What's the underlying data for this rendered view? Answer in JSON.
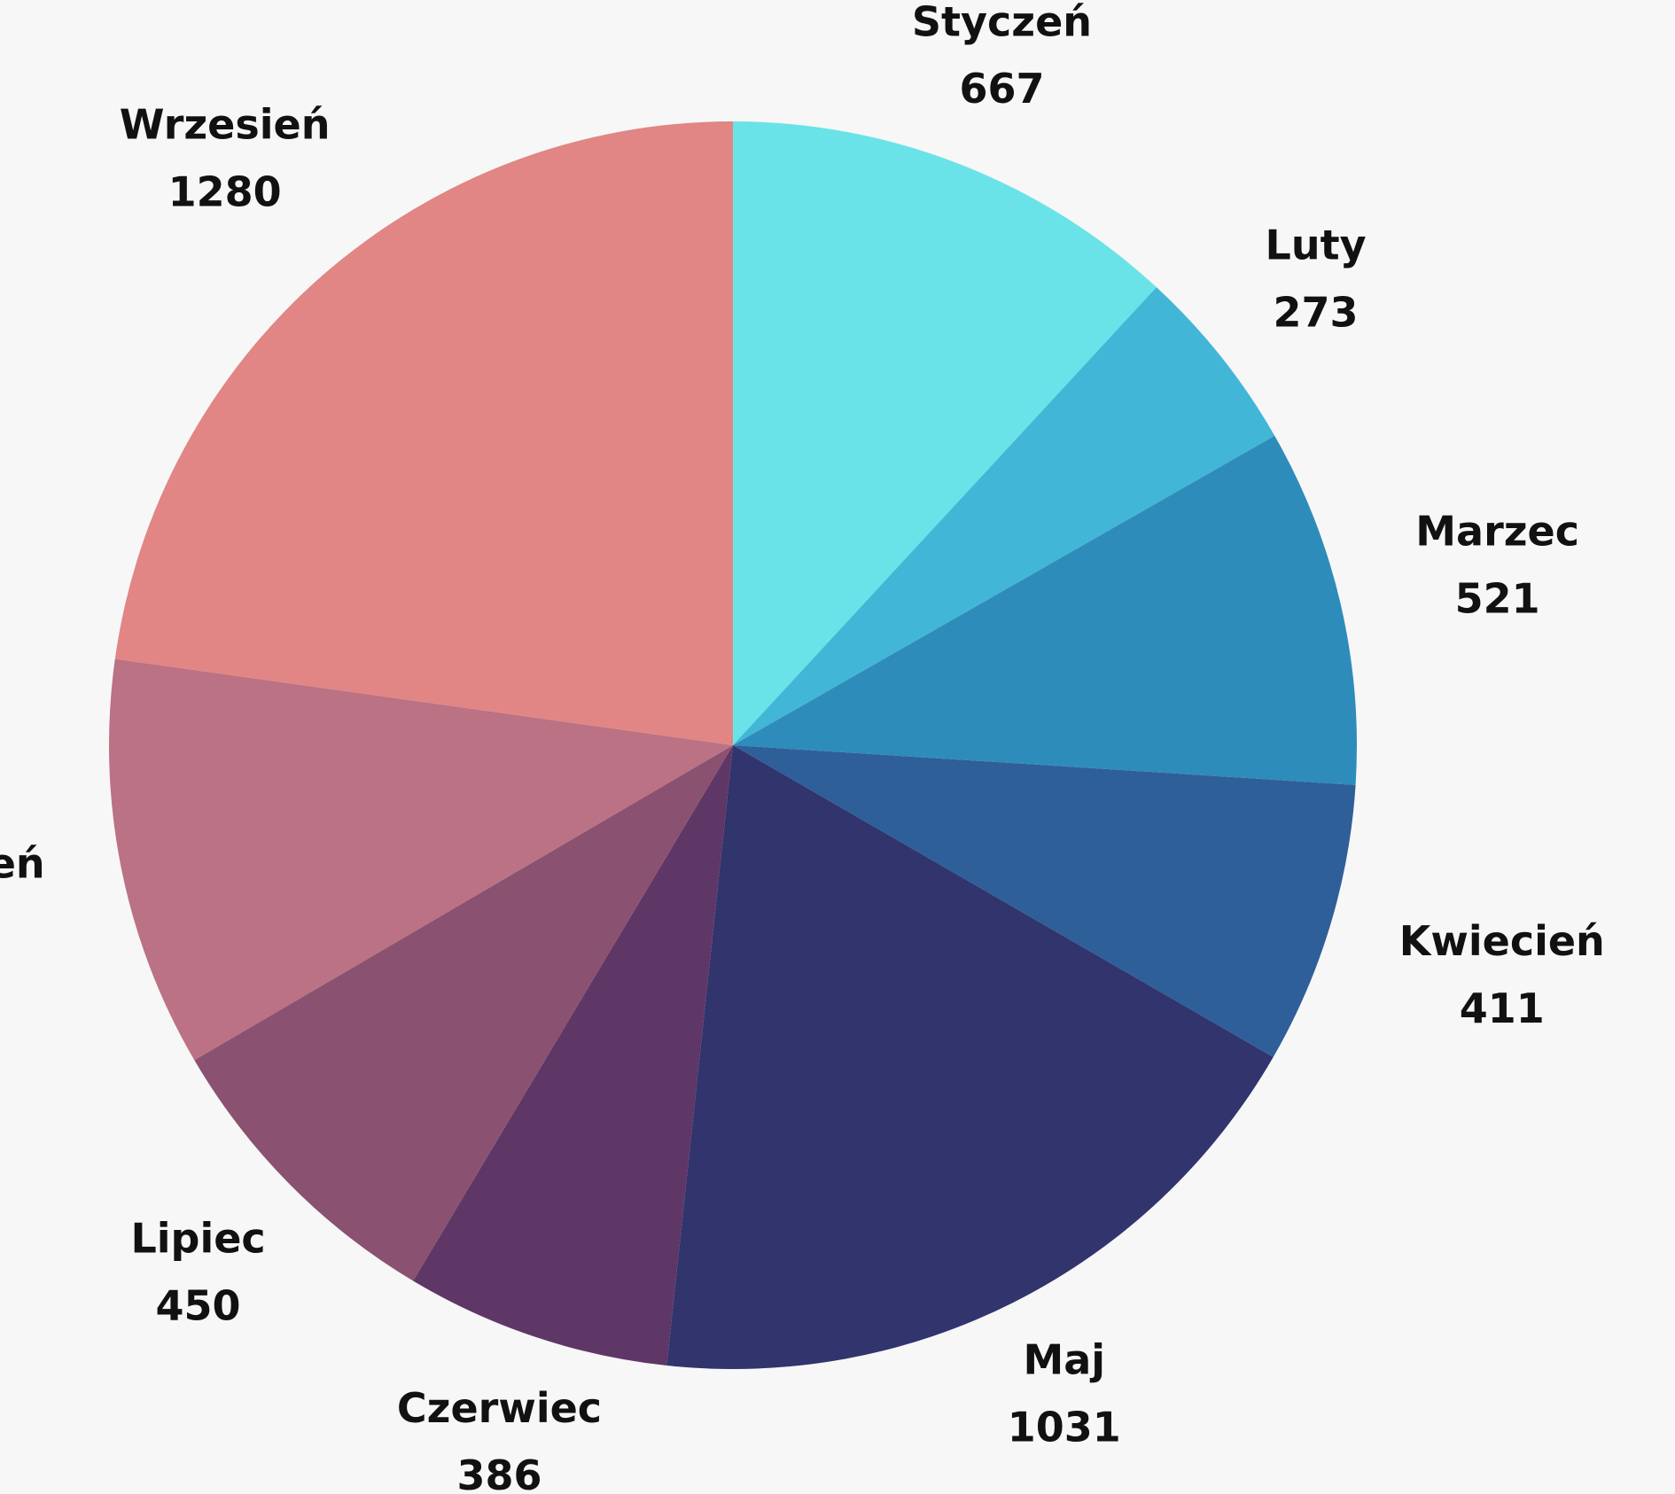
{
  "chart_data": {
    "type": "pie",
    "categories": [
      "Styczeń",
      "Luty",
      "Marzec",
      "Kwiecień",
      "Maj",
      "Czerwiec",
      "Lipiec",
      "Sierpień",
      "Wrzesień"
    ],
    "values": [
      667,
      273,
      521,
      411,
      1031,
      386,
      450,
      597,
      1280
    ],
    "colors": [
      "#6ae3e8",
      "#42b6d6",
      "#2e8cbb",
      "#2e5f98",
      "#31346d",
      "#5e3767",
      "#8a5270",
      "#ba7284",
      "#e18585"
    ]
  }
}
